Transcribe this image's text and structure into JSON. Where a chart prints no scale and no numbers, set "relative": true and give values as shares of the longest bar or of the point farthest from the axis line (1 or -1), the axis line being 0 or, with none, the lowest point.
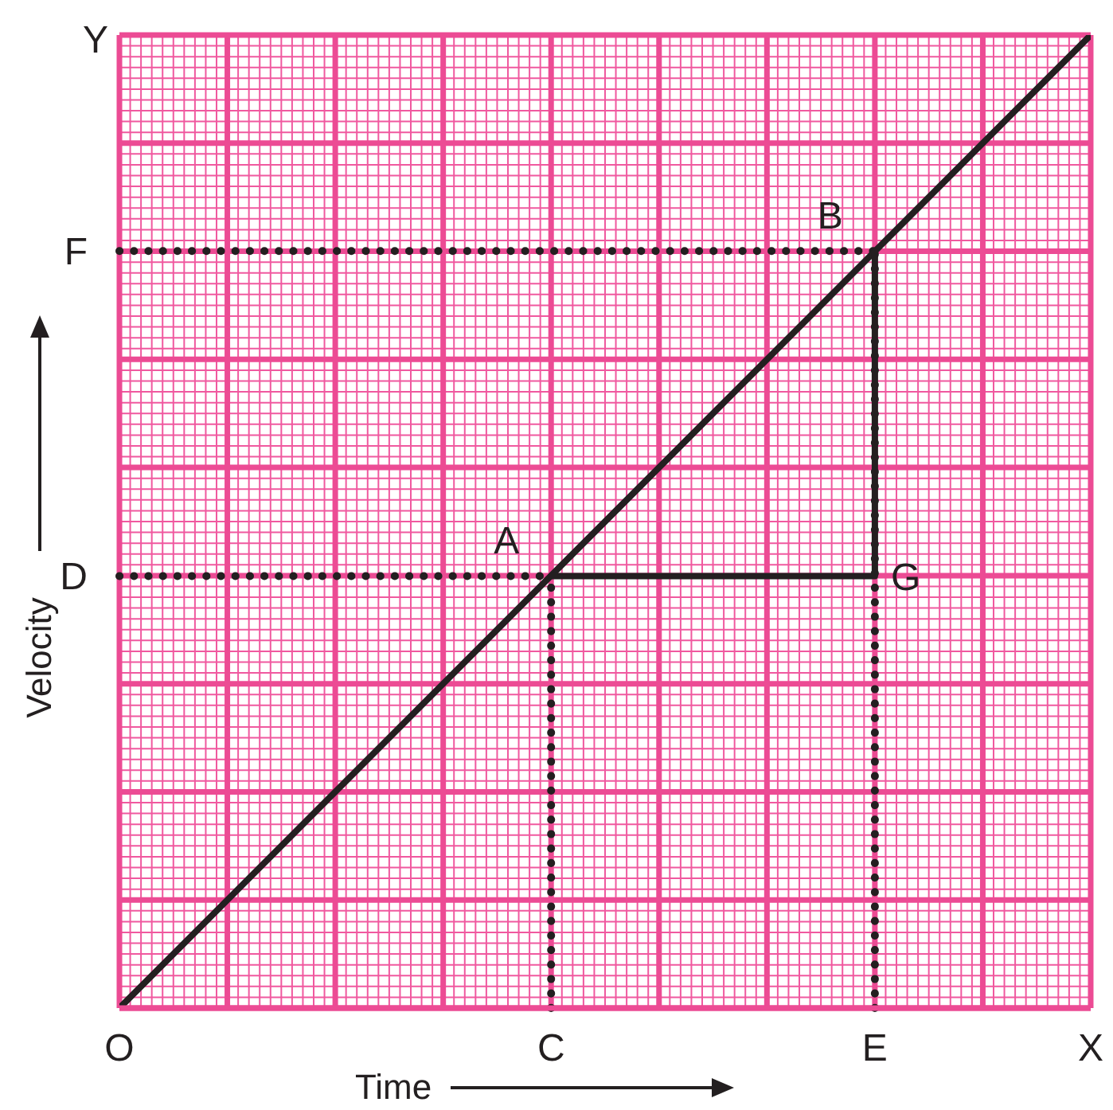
{
  "chart_data": {
    "type": "line",
    "xlabel": "Time",
    "ylabel": "Velocity",
    "relative": true,
    "categories": [
      "O",
      null,
      null,
      null,
      "C",
      null,
      null,
      "E",
      null,
      "X"
    ],
    "grid": true,
    "marker": "none",
    "line_style": "solid",
    "series": [
      {
        "color": "#231f20",
        "x": [
          "O",
          "X"
        ],
        "values": [
          0,
          1
        ]
      },
      {
        "color": "#231f20",
        "x": [
          "C",
          "E",
          "E"
        ],
        "values": [
          0.444,
          0.444,
          0.778
        ]
      }
    ],
    "ref_lines": [
      {
        "axis": "y",
        "value": 0.444,
        "label": "D",
        "line_style": "dotted",
        "color": "#231f20"
      },
      {
        "axis": "y",
        "value": 0.778,
        "label": "F",
        "line_style": "dotted",
        "color": "#231f20"
      },
      {
        "axis": "x",
        "value": "C",
        "line_style": "dotted",
        "color": "#231f20"
      },
      {
        "axis": "x",
        "value": "E",
        "line_style": "dotted",
        "color": "#231f20"
      }
    ],
    "annotations": [
      "Y",
      {
        "text": "A",
        "x": "C",
        "y": 0.444
      },
      {
        "text": "B",
        "x": "E",
        "y": 0.778
      },
      {
        "text": "G",
        "x": "E",
        "y": 0.444
      }
    ]
  }
}
